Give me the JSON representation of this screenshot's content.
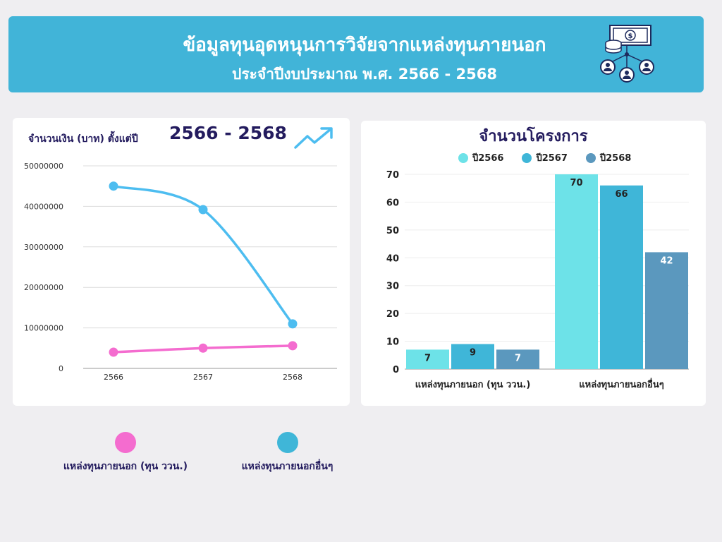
{
  "header": {
    "title_line1": "ข้อมูลทุนอุดหนุนการวิจัยจากแหล่งทุนภายนอก",
    "title_line2": "ประจำปีงบประมาณ พ.ศ. 2566 - 2568",
    "icon": "funding-network-icon"
  },
  "left_chart_header": {
    "title": "จำนวนเงิน (บาท) ตั้งแต่ปี",
    "range": "2566 - 2568",
    "icon": "trending-up-icon"
  },
  "bottom_legend": [
    {
      "label": "แหล่งทุนภายนอก  (ทุน ววน.)",
      "color": "#f46ccf"
    },
    {
      "label": "แหล่งทุนภายนอกอื่นๆ",
      "color": "#3fb6d8"
    }
  ],
  "chart_data": [
    {
      "type": "line",
      "title": "จำนวนเงิน (บาท) ตั้งแต่ปี 2566 - 2568",
      "x": [
        "2566",
        "2567",
        "2568"
      ],
      "ylim": [
        0,
        50000000
      ],
      "yticks": [
        "0",
        "10000000",
        "20000000",
        "30000000",
        "40000000",
        "50000000"
      ],
      "grid": true,
      "series": [
        {
          "name": "แหล่งทุนภายนอก  (ทุน ววน.)",
          "color": "#f46ccf",
          "values": [
            4000000,
            5000000,
            5600000
          ]
        },
        {
          "name": "แหล่งทุนภายนอกอื่นๆ",
          "color": "#4dbdf0",
          "values": [
            45000000,
            39200000,
            11000000
          ]
        }
      ]
    },
    {
      "type": "bar",
      "title": "จำนวนโครงการ",
      "categories": [
        "แหล่งทุนภายนอก (ทุน ววน.)",
        "แหล่งทุนภายนอกอื่นๆ"
      ],
      "ylim": [
        0,
        70
      ],
      "yticks": [
        "0",
        "10",
        "20",
        "30",
        "40",
        "50",
        "60",
        "70"
      ],
      "legend_position": "top",
      "series": [
        {
          "name": "ปี2566",
          "color": "#6de2e8",
          "values": [
            7,
            70
          ]
        },
        {
          "name": "ปี2567",
          "color": "#3fb6d8",
          "values": [
            9,
            66
          ]
        },
        {
          "name": "ปี2568",
          "color": "#5b98be",
          "values": [
            7,
            42
          ]
        }
      ]
    }
  ]
}
